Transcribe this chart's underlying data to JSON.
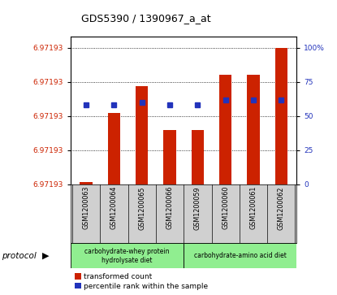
{
  "title": "GDS5390 / 1390967_a_at",
  "samples": [
    "GSM1200063",
    "GSM1200064",
    "GSM1200065",
    "GSM1200066",
    "GSM1200059",
    "GSM1200060",
    "GSM1200061",
    "GSM1200062"
  ],
  "red_heights": [
    2,
    52,
    72,
    40,
    40,
    80,
    80,
    100
  ],
  "blue_values": [
    58,
    58,
    60,
    58,
    58,
    62,
    62,
    62
  ],
  "ytick_positions": [
    0,
    25,
    50,
    75,
    100
  ],
  "ytick_label": "6.97193",
  "right_ytick_labels": [
    "0",
    "25",
    "50",
    "75",
    "100%"
  ],
  "group1_label": "carbohydrate-whey protein\nhydrolysate diet",
  "group2_label": "carbohydrate-amino acid diet",
  "group1_color": "#90ee90",
  "group2_color": "#90ee90",
  "protocol_label": "protocol",
  "bar_color_red": "#cc2200",
  "bar_color_blue": "#2233bb",
  "ytick_color": "#cc2200",
  "right_ytick_color": "#2233bb",
  "sample_bg": "#d0d0d0",
  "plot_bg": "#ffffff",
  "ylim_max": 108
}
